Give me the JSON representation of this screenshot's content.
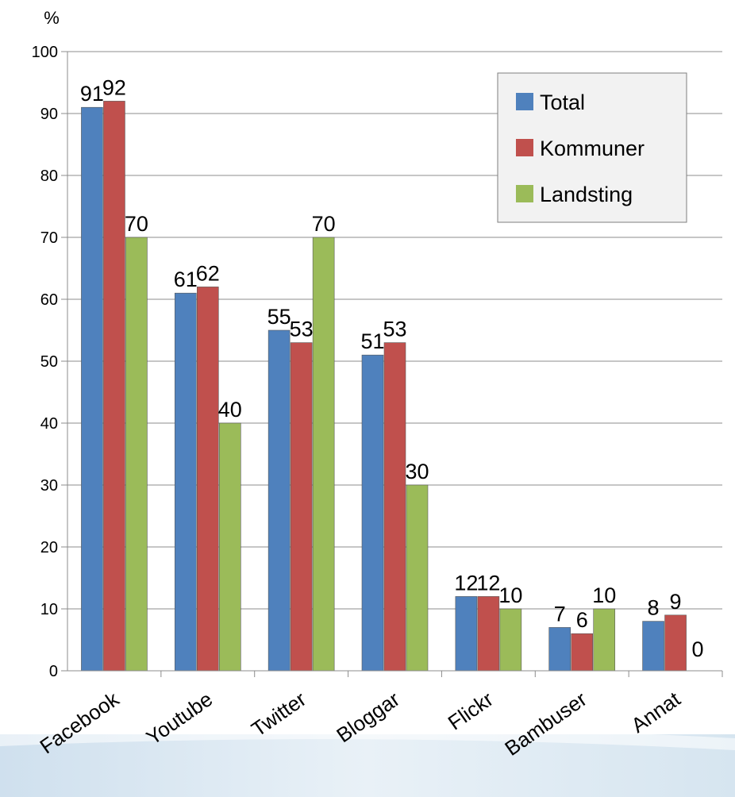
{
  "chart_data": {
    "type": "bar",
    "ylabel": "%",
    "ylim": [
      0,
      100
    ],
    "ytick_step": 10,
    "grid": true,
    "legend_position": "top-right",
    "categories": [
      "Facebook",
      "Youtube",
      "Twitter",
      "Bloggar",
      "Flickr",
      "Bambuser",
      "Annat"
    ],
    "series": [
      {
        "name": "Total",
        "color": "#4F81BD",
        "values": [
          91,
          61,
          55,
          51,
          12,
          7,
          8
        ]
      },
      {
        "name": "Kommuner",
        "color": "#C0504D",
        "values": [
          92,
          62,
          53,
          53,
          12,
          6,
          9
        ]
      },
      {
        "name": "Landsting",
        "color": "#9BBB59",
        "values": [
          70,
          40,
          70,
          30,
          10,
          10,
          0
        ]
      }
    ]
  }
}
